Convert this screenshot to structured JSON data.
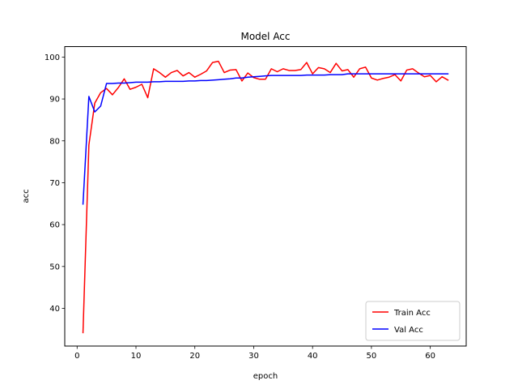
{
  "chart_data": {
    "type": "line",
    "title": "Model Acc",
    "xlabel": "epoch",
    "ylabel": "acc",
    "xlim": [
      -2.1,
      66.1
    ],
    "ylim": [
      31.0,
      102.5
    ],
    "xticks": [
      0,
      10,
      20,
      30,
      40,
      50,
      60
    ],
    "yticks": [
      40,
      50,
      60,
      70,
      80,
      90,
      100
    ],
    "grid": false,
    "legend_position": "bottom-right",
    "x": [
      1,
      2,
      3,
      4,
      5,
      6,
      7,
      8,
      9,
      10,
      11,
      12,
      13,
      14,
      15,
      16,
      17,
      18,
      19,
      20,
      21,
      22,
      23,
      24,
      25,
      26,
      27,
      28,
      29,
      30,
      31,
      32,
      33,
      34,
      35,
      36,
      37,
      38,
      39,
      40,
      41,
      42,
      43,
      44,
      45,
      46,
      47,
      48,
      49,
      50,
      51,
      52,
      53,
      54,
      55,
      56,
      57,
      58,
      59,
      60,
      61,
      62,
      63
    ],
    "series": [
      {
        "name": "Train Acc",
        "color": "#ff0000",
        "values": [
          34.2,
          79.0,
          89.0,
          91.5,
          92.5,
          91.0,
          92.7,
          94.8,
          92.3,
          92.8,
          93.5,
          90.3,
          97.2,
          96.3,
          95.2,
          96.3,
          96.8,
          95.5,
          96.3,
          95.2,
          95.9,
          96.7,
          98.7,
          99.0,
          96.3,
          96.9,
          97.0,
          94.3,
          96.2,
          95.1,
          94.7,
          94.7,
          97.2,
          96.5,
          97.2,
          96.8,
          96.8,
          97.0,
          98.7,
          96.0,
          97.5,
          97.2,
          96.3,
          98.5,
          96.7,
          97.0,
          95.2,
          97.2,
          97.6,
          95.0,
          94.5,
          94.9,
          95.2,
          95.8,
          94.3,
          96.9,
          97.2,
          96.2,
          95.3,
          95.6,
          94.1,
          95.3,
          94.5
        ]
      },
      {
        "name": "Val Acc",
        "color": "#0000ff",
        "values": [
          64.9,
          90.6,
          86.9,
          88.3,
          93.7,
          93.7,
          93.8,
          93.8,
          93.9,
          94.0,
          94.0,
          94.0,
          94.1,
          94.1,
          94.2,
          94.2,
          94.2,
          94.2,
          94.3,
          94.3,
          94.4,
          94.4,
          94.5,
          94.6,
          94.7,
          94.8,
          95.0,
          95.0,
          95.2,
          95.3,
          95.4,
          95.5,
          95.6,
          95.6,
          95.6,
          95.6,
          95.6,
          95.6,
          95.7,
          95.7,
          95.7,
          95.7,
          95.8,
          95.8,
          95.8,
          96.0,
          96.0,
          96.0,
          96.0,
          96.0,
          96.0,
          96.0,
          96.0,
          96.0,
          96.0,
          96.0,
          96.0,
          96.0,
          96.0,
          96.0,
          96.0,
          96.0,
          96.0
        ]
      }
    ]
  }
}
